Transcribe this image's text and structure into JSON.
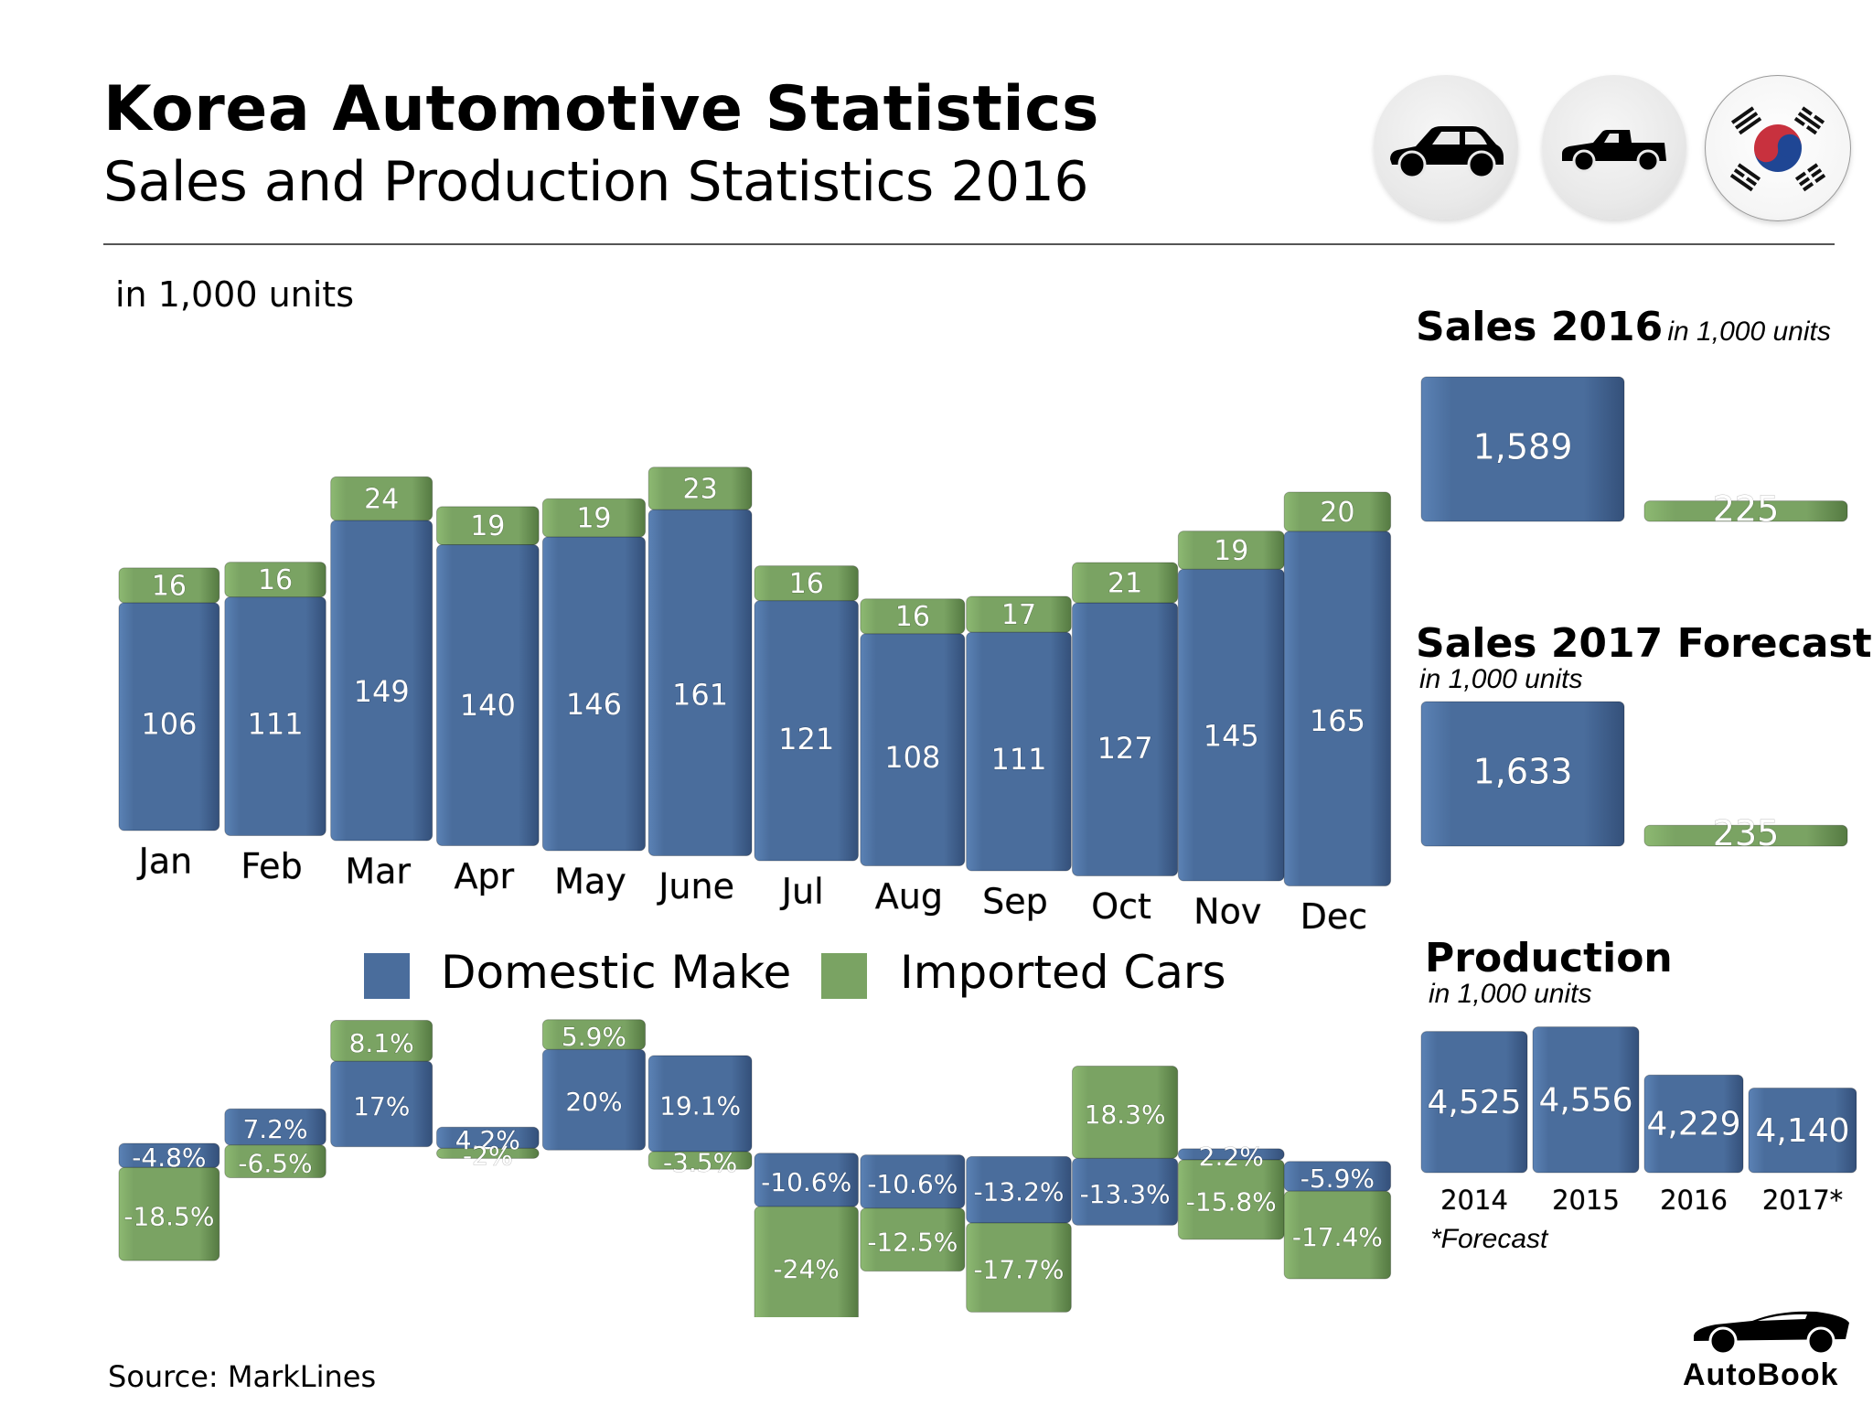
{
  "header": {
    "title": "Korea Automotive Statistics",
    "subtitle": "Sales and Production Statistics 2016",
    "badges": [
      {
        "icon": "sedan-car-icon"
      },
      {
        "icon": "pickup-truck-icon"
      },
      {
        "icon": "south-korea-flag-icon"
      }
    ]
  },
  "colors": {
    "domestic": "#4a6d9c",
    "imported": "#7aa363",
    "text_on_bar": "#ffffff"
  },
  "chart_data": [
    {
      "type": "bar",
      "title": "Monthly sales 2016",
      "units_label": "in 1,000 units",
      "stacked": true,
      "categories": [
        "Jan",
        "Feb",
        "Mar",
        "Apr",
        "May",
        "June",
        "Jul",
        "Aug",
        "Sep",
        "Oct",
        "Nov",
        "Dec"
      ],
      "series": [
        {
          "name": "Domestic Make",
          "values": [
            106,
            111,
            149,
            140,
            146,
            161,
            121,
            108,
            111,
            127,
            145,
            165
          ]
        },
        {
          "name": "Imported Cars",
          "values": [
            16,
            16,
            24,
            19,
            19,
            23,
            16,
            16,
            17,
            21,
            19,
            20
          ]
        }
      ],
      "legend": [
        "Domestic Make",
        "Imported Cars"
      ],
      "legend_position": "bottom",
      "grid": false
    },
    {
      "type": "bar",
      "title": "Year-over-year change",
      "categories": [
        "Jan",
        "Feb",
        "Mar",
        "Apr",
        "May",
        "June",
        "Jul",
        "Aug",
        "Sep",
        "Oct",
        "Nov",
        "Dec"
      ],
      "series": [
        {
          "name": "Domestic Make",
          "values": [
            -4.8,
            7.2,
            17,
            4.2,
            20,
            19.1,
            -10.6,
            -10.6,
            -13.2,
            -13.3,
            2.2,
            -5.9
          ],
          "labels": [
            "-4.8%",
            "7.2%",
            "17%",
            "4.2%",
            "20%",
            "19.1%",
            "-10.6%",
            "-10.6%",
            "-13.2%",
            "-13.3%",
            "2.2%",
            "-5.9%"
          ]
        },
        {
          "name": "Imported Cars",
          "values": [
            -18.5,
            -6.5,
            8.1,
            -2,
            5.9,
            -3.5,
            -24,
            -12.5,
            -17.7,
            18.3,
            -15.8,
            -17.4
          ],
          "labels": [
            "-18.5%",
            "-6.5%",
            "8.1%",
            "-2%",
            "5.9%",
            "-3.5%",
            "-24%",
            "-12.5%",
            "-17.7%",
            "18.3%",
            "-15.8%",
            "-17.4%"
          ]
        }
      ],
      "unit": "%"
    },
    {
      "type": "bar",
      "title": "Sales 2016",
      "units_label": "in 1,000 units",
      "categories": [
        "Domestic Make",
        "Imported Cars"
      ],
      "values": [
        1589,
        225
      ],
      "labels": [
        "1,589",
        "225"
      ]
    },
    {
      "type": "bar",
      "title": "Sales 2017 Forecast",
      "units_label": "in 1,000 units",
      "categories": [
        "Domestic Make",
        "Imported Cars"
      ],
      "values": [
        1633,
        235
      ],
      "labels": [
        "1,633",
        "235"
      ]
    },
    {
      "type": "bar",
      "title": "Production",
      "units_label": "in 1,000 units",
      "categories": [
        "2014",
        "2015",
        "2016",
        "2017*"
      ],
      "values": [
        4525,
        4556,
        4229,
        4140
      ],
      "labels": [
        "4,525",
        "4,556",
        "4,229",
        "4,140"
      ],
      "footnote": "*Forecast"
    }
  ],
  "footer": {
    "source": "Source:  MarkLines",
    "brand": "AutoBook"
  }
}
